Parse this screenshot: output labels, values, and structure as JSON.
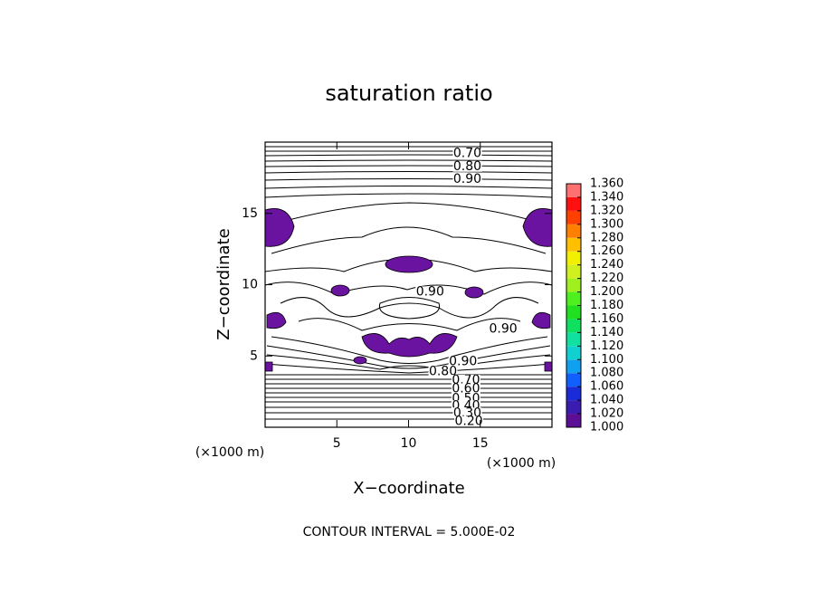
{
  "chart_data": {
    "type": "contour",
    "title": "saturation ratio",
    "xlabel": "X−coordinate",
    "ylabel": "Z−coordinate",
    "x_unit": "(×1000 m)",
    "y_unit": "(×1000 m)",
    "xlim": [
      0,
      20
    ],
    "ylim": [
      0,
      20
    ],
    "xticks": [
      5,
      10,
      15
    ],
    "yticks": [
      5,
      10,
      15
    ],
    "footer": "CONTOUR INTERVAL = 5.000E-02",
    "contour_labels": [
      {
        "value": 0.7,
        "label": "0.70",
        "x": 14.1,
        "z": 19.2
      },
      {
        "value": 0.8,
        "label": "0.80",
        "x": 14.1,
        "z": 18.3
      },
      {
        "value": 0.9,
        "label": "0.90",
        "x": 14.1,
        "z": 17.4
      },
      {
        "value": 0.9,
        "label": "0.90",
        "x": 11.5,
        "z": 9.5
      },
      {
        "value": 0.9,
        "label": "0.90",
        "x": 16.6,
        "z": 6.9
      },
      {
        "value": 0.9,
        "label": "0.90",
        "x": 13.8,
        "z": 4.6
      },
      {
        "value": 0.8,
        "label": "0.80",
        "x": 12.4,
        "z": 3.9
      },
      {
        "value": 0.7,
        "label": "0.70",
        "x": 14.0,
        "z": 3.3
      },
      {
        "value": 0.6,
        "label": "0.60",
        "x": 14.0,
        "z": 2.7
      },
      {
        "value": 0.5,
        "label": "0.50",
        "x": 14.0,
        "z": 2.0
      },
      {
        "value": 0.4,
        "label": "0.40",
        "x": 14.0,
        "z": 1.5
      },
      {
        "value": 0.3,
        "label": "0.30",
        "x": 14.1,
        "z": 1.0
      },
      {
        "value": 0.2,
        "label": "0.20",
        "x": 14.2,
        "z": 0.4
      }
    ],
    "colorbar": {
      "range": [
        1.0,
        1.36
      ],
      "ticks": [
        {
          "value": 1.0,
          "label": "1.000"
        },
        {
          "value": 1.02,
          "label": "1.020"
        },
        {
          "value": 1.04,
          "label": "1.040"
        },
        {
          "value": 1.06,
          "label": "1.060"
        },
        {
          "value": 1.08,
          "label": "1.080"
        },
        {
          "value": 1.1,
          "label": "1.100"
        },
        {
          "value": 1.12,
          "label": "1.120"
        },
        {
          "value": 1.14,
          "label": "1.140"
        },
        {
          "value": 1.16,
          "label": "1.160"
        },
        {
          "value": 1.18,
          "label": "1.180"
        },
        {
          "value": 1.2,
          "label": "1.200"
        },
        {
          "value": 1.22,
          "label": "1.220"
        },
        {
          "value": 1.24,
          "label": "1.240"
        },
        {
          "value": 1.26,
          "label": "1.260"
        },
        {
          "value": 1.28,
          "label": "1.280"
        },
        {
          "value": 1.3,
          "label": "1.300"
        },
        {
          "value": 1.32,
          "label": "1.320"
        },
        {
          "value": 1.34,
          "label": "1.340"
        },
        {
          "value": 1.36,
          "label": "1.360"
        }
      ],
      "colors": [
        "#5c0f94",
        "#3a1db0",
        "#1a2bd8",
        "#1060ff",
        "#10a0f0",
        "#10d0d0",
        "#10e0a0",
        "#10e060",
        "#20e020",
        "#50f020",
        "#a0f020",
        "#d0f020",
        "#f0f000",
        "#ffc000",
        "#ff8000",
        "#ff4000",
        "#ff1010",
        "#ff7070"
      ]
    }
  }
}
